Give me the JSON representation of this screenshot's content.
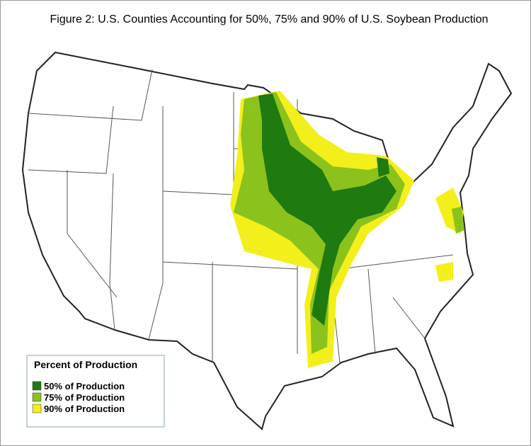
{
  "title": "Figure 2: U.S. Counties Accounting for 50%, 75% and 90% of  U.S. Soybean Production",
  "legend": {
    "title": "Percent of Production",
    "items": [
      {
        "label": "50% of Production",
        "color": "#1f7a0f"
      },
      {
        "label": "75% of Production",
        "color": "#8cc21c"
      },
      {
        "label": "90% of Production",
        "color": "#f2ef1a"
      }
    ]
  }
}
